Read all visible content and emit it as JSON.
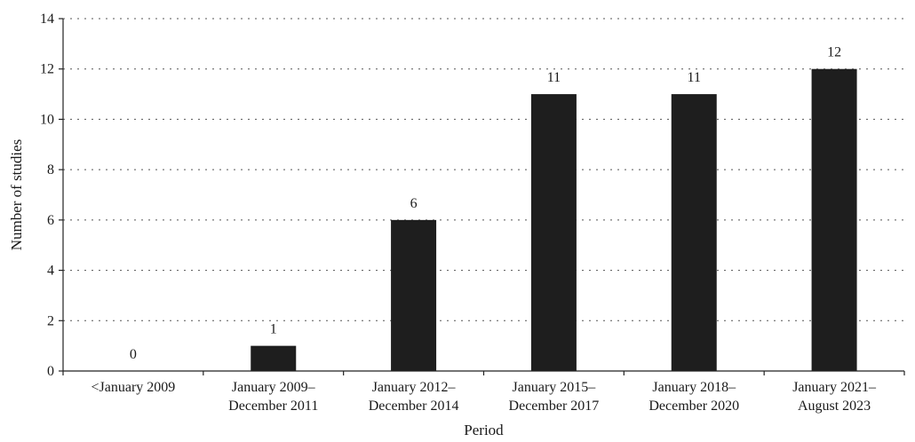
{
  "chart_data": {
    "type": "bar",
    "categories": [
      [
        "<January 2009"
      ],
      [
        "January 2009–",
        "December 2011"
      ],
      [
        "January 2012–",
        "December 2014"
      ],
      [
        "January 2015–",
        "December 2017"
      ],
      [
        "January 2018–",
        "December 2020"
      ],
      [
        "January 2021–",
        "August 2023"
      ]
    ],
    "values": [
      0,
      1,
      6,
      11,
      11,
      12
    ],
    "data_labels": [
      "0",
      "1",
      "6",
      "11",
      "11",
      "12"
    ],
    "xlabel": "Period",
    "ylabel": "Number of studies",
    "ylim": [
      0,
      14
    ],
    "yticks": [
      0,
      2,
      4,
      6,
      8,
      10,
      12,
      14
    ],
    "grid": "horizontal dotted",
    "bar_color": "#1e1e1e"
  }
}
